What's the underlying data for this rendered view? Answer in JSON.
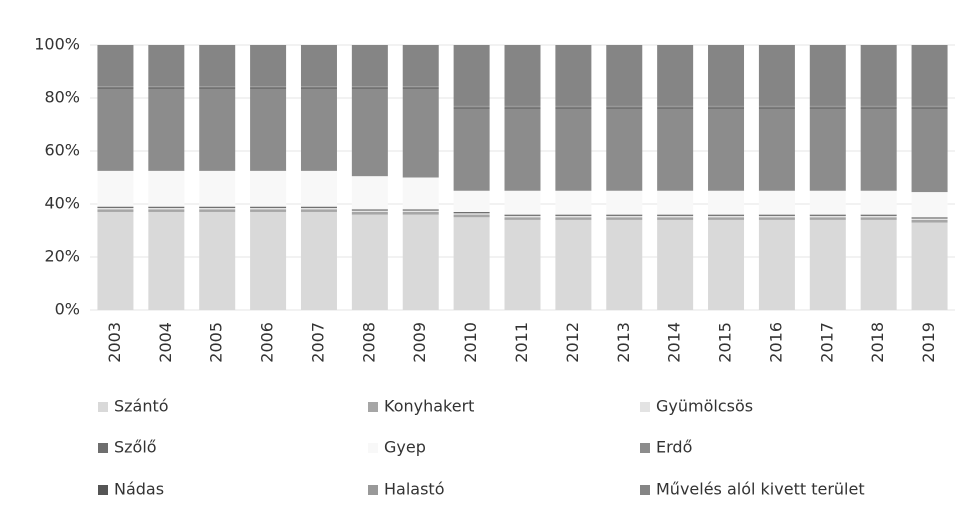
{
  "chart_data": {
    "type": "stacked_bar",
    "categories": [
      "2003",
      "2004",
      "2005",
      "2006",
      "2007",
      "2008",
      "2009",
      "2010",
      "2011",
      "2012",
      "2013",
      "2014",
      "2015",
      "2016",
      "2017",
      "2018",
      "2019"
    ],
    "series": [
      {
        "name": "Szántó",
        "color": "#d9d9d9",
        "values": [
          37,
          37,
          37,
          37,
          37,
          36,
          36,
          35,
          34,
          34,
          34,
          34,
          34,
          34,
          34,
          34,
          33
        ]
      },
      {
        "name": "Konyhakert",
        "color": "#a6a6a6",
        "values": [
          1,
          1,
          1,
          1,
          1,
          1,
          1,
          1,
          1,
          1,
          1,
          1,
          1,
          1,
          1,
          1,
          1
        ]
      },
      {
        "name": "Gyümölcsös",
        "color": "#e3e3e3",
        "values": [
          0.5,
          0.5,
          0.5,
          0.5,
          0.5,
          0.5,
          0.5,
          0.5,
          0.5,
          0.5,
          0.5,
          0.5,
          0.5,
          0.5,
          0.5,
          0.5,
          0.5
        ]
      },
      {
        "name": "Szőlő",
        "color": "#6e6e6e",
        "values": [
          0.5,
          0.5,
          0.5,
          0.5,
          0.5,
          0.5,
          0.5,
          0.5,
          0.5,
          0.5,
          0.5,
          0.5,
          0.5,
          0.5,
          0.5,
          0.5,
          0.5
        ]
      },
      {
        "name": "Gyep",
        "color": "#f8f8f8",
        "values": [
          13.5,
          13.5,
          13.5,
          13.5,
          13.5,
          12.5,
          12,
          8,
          9,
          9,
          9,
          9,
          9,
          9,
          9,
          9,
          9.5
        ]
      },
      {
        "name": "Erdő",
        "color": "#8c8c8c",
        "values": [
          31,
          31,
          31,
          31,
          31,
          33,
          33.5,
          31,
          31,
          31,
          31,
          31,
          31,
          31,
          31,
          31,
          31.5
        ]
      },
      {
        "name": "Nádas",
        "color": "#555555",
        "values": [
          0.5,
          0.5,
          0.5,
          0.5,
          0.5,
          0.5,
          0.5,
          0.5,
          0.5,
          0.5,
          0.5,
          0.5,
          0.5,
          0.5,
          0.5,
          0.5,
          0.5
        ]
      },
      {
        "name": "Halastó",
        "color": "#999999",
        "values": [
          0.5,
          0.5,
          0.5,
          0.5,
          0.5,
          0.5,
          0.5,
          0.5,
          0.5,
          0.5,
          0.5,
          0.5,
          0.5,
          0.5,
          0.5,
          0.5,
          0.5
        ]
      },
      {
        "name": "Művelés alól kivett terület",
        "color": "#858585",
        "values": [
          15.5,
          15.5,
          15.5,
          15.5,
          15.5,
          15.5,
          15.5,
          23,
          23,
          23,
          23,
          23,
          23,
          23,
          23,
          23,
          23
        ]
      }
    ],
    "ylim": [
      0,
      100
    ],
    "yticks": [
      {
        "value": 0,
        "label": "0%"
      },
      {
        "value": 20,
        "label": "20%"
      },
      {
        "value": 40,
        "label": "40%"
      },
      {
        "value": 60,
        "label": "60%"
      },
      {
        "value": 80,
        "label": "80%"
      },
      {
        "value": 100,
        "label": "100%"
      }
    ],
    "grid": true,
    "legend": "bottom"
  }
}
